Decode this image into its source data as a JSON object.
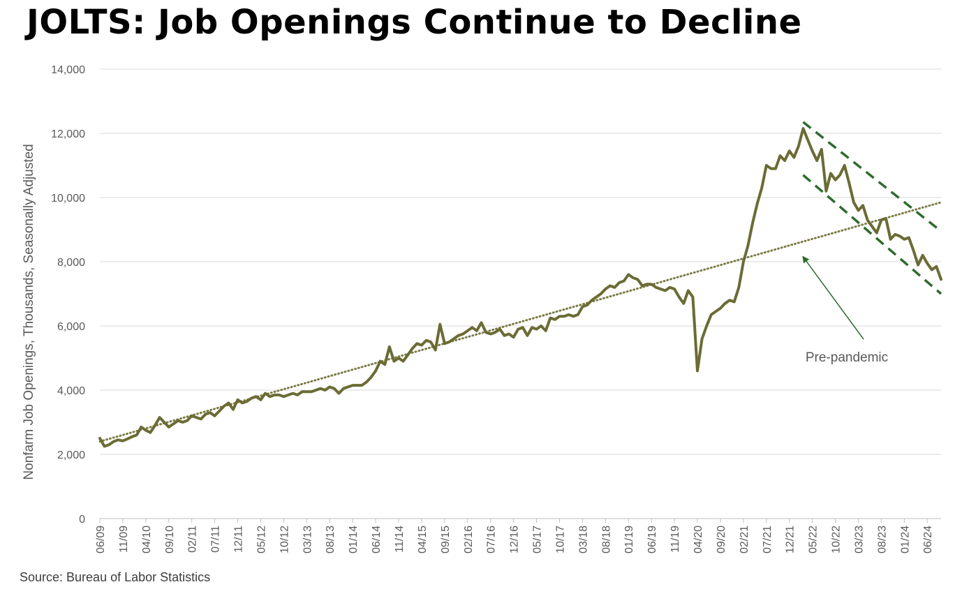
{
  "title": "JOLTS: Job Openings Continue to Decline",
  "source": "Source: Bureau of Labor Statistics",
  "colors": {
    "series": "#6b6b35",
    "trend": "#7a7a45",
    "channel": "#2f6b2f",
    "arrow": "#2f6b2f",
    "grid": "#d9d9d9",
    "tick_text": "#595959"
  },
  "chart_data": {
    "type": "line",
    "title": "JOLTS: Job Openings Continue to Decline",
    "ylabel": "Nonfarm Job Openings, Thousands, Seasonally Adjusted",
    "xlabel": "",
    "ylim": [
      0,
      14000
    ],
    "yticks": [
      0,
      2000,
      4000,
      6000,
      8000,
      10000,
      12000,
      14000
    ],
    "ytick_labels": [
      "0",
      "2,000",
      "4,000",
      "6,000",
      "8,000",
      "10,000",
      "12,000",
      "14,000"
    ],
    "x_start": "06/09",
    "x_end": "09/24",
    "xtick_labels": [
      "06/09",
      "11/09",
      "04/10",
      "09/10",
      "02/11",
      "07/11",
      "12/11",
      "05/12",
      "10/12",
      "03/13",
      "08/13",
      "01/14",
      "06/14",
      "11/14",
      "04/15",
      "09/15",
      "02/16",
      "07/16",
      "12/16",
      "05/17",
      "10/17",
      "03/18",
      "08/18",
      "01/19",
      "06/19",
      "11/19",
      "04/20",
      "09/20",
      "02/21",
      "07/21",
      "12/21",
      "05/22",
      "10/22",
      "03/23",
      "08/23",
      "01/24",
      "06/24"
    ],
    "grid": true,
    "legend": "none",
    "series": [
      {
        "name": "",
        "style": "solid",
        "points": [
          [
            "06/09",
            2500
          ],
          [
            "07/09",
            2250
          ],
          [
            "08/09",
            2300
          ],
          [
            "09/09",
            2400
          ],
          [
            "10/09",
            2450
          ],
          [
            "11/09",
            2420
          ],
          [
            "12/09",
            2480
          ],
          [
            "01/10",
            2550
          ],
          [
            "02/10",
            2600
          ],
          [
            "03/10",
            2850
          ],
          [
            "04/10",
            2750
          ],
          [
            "05/10",
            2680
          ],
          [
            "06/10",
            2900
          ],
          [
            "07/10",
            3150
          ],
          [
            "08/10",
            3000
          ],
          [
            "09/10",
            2850
          ],
          [
            "10/10",
            2950
          ],
          [
            "11/10",
            3050
          ],
          [
            "12/10",
            3000
          ],
          [
            "01/11",
            3050
          ],
          [
            "02/11",
            3200
          ],
          [
            "03/11",
            3150
          ],
          [
            "04/11",
            3100
          ],
          [
            "05/11",
            3250
          ],
          [
            "06/11",
            3300
          ],
          [
            "07/11",
            3200
          ],
          [
            "08/11",
            3350
          ],
          [
            "09/11",
            3500
          ],
          [
            "10/11",
            3600
          ],
          [
            "11/11",
            3400
          ],
          [
            "12/11",
            3700
          ],
          [
            "01/12",
            3600
          ],
          [
            "02/12",
            3650
          ],
          [
            "03/12",
            3750
          ],
          [
            "04/12",
            3800
          ],
          [
            "05/12",
            3700
          ],
          [
            "06/12",
            3900
          ],
          [
            "07/12",
            3800
          ],
          [
            "08/12",
            3850
          ],
          [
            "09/12",
            3850
          ],
          [
            "10/12",
            3800
          ],
          [
            "11/12",
            3850
          ],
          [
            "12/12",
            3900
          ],
          [
            "01/13",
            3850
          ],
          [
            "02/13",
            3950
          ],
          [
            "03/13",
            3950
          ],
          [
            "04/13",
            3950
          ],
          [
            "05/13",
            4000
          ],
          [
            "06/13",
            4050
          ],
          [
            "07/13",
            4000
          ],
          [
            "08/13",
            4100
          ],
          [
            "09/13",
            4050
          ],
          [
            "10/13",
            3900
          ],
          [
            "11/13",
            4050
          ],
          [
            "12/13",
            4100
          ],
          [
            "01/14",
            4150
          ],
          [
            "02/14",
            4150
          ],
          [
            "03/14",
            4150
          ],
          [
            "04/14",
            4250
          ],
          [
            "05/14",
            4400
          ],
          [
            "06/14",
            4600
          ],
          [
            "07/14",
            4900
          ],
          [
            "08/14",
            4800
          ],
          [
            "09/14",
            5350
          ],
          [
            "10/14",
            4900
          ],
          [
            "11/14",
            5000
          ],
          [
            "12/14",
            4900
          ],
          [
            "01/15",
            5100
          ],
          [
            "02/15",
            5300
          ],
          [
            "03/15",
            5450
          ],
          [
            "04/15",
            5400
          ],
          [
            "05/15",
            5550
          ],
          [
            "06/15",
            5500
          ],
          [
            "07/15",
            5250
          ],
          [
            "08/15",
            6050
          ],
          [
            "09/15",
            5450
          ],
          [
            "10/15",
            5500
          ],
          [
            "11/15",
            5600
          ],
          [
            "12/15",
            5700
          ],
          [
            "01/16",
            5750
          ],
          [
            "02/16",
            5850
          ],
          [
            "03/16",
            5950
          ],
          [
            "04/16",
            5850
          ],
          [
            "05/16",
            6100
          ],
          [
            "06/16",
            5800
          ],
          [
            "07/16",
            5750
          ],
          [
            "08/16",
            5800
          ],
          [
            "09/16",
            5900
          ],
          [
            "10/16",
            5700
          ],
          [
            "11/16",
            5750
          ],
          [
            "12/16",
            5650
          ],
          [
            "01/17",
            5900
          ],
          [
            "02/17",
            5950
          ],
          [
            "03/17",
            5700
          ],
          [
            "04/17",
            5950
          ],
          [
            "05/17",
            5900
          ],
          [
            "06/17",
            6000
          ],
          [
            "07/17",
            5850
          ],
          [
            "08/17",
            6250
          ],
          [
            "09/17",
            6200
          ],
          [
            "10/17",
            6300
          ],
          [
            "11/17",
            6300
          ],
          [
            "12/17",
            6350
          ],
          [
            "01/18",
            6300
          ],
          [
            "02/18",
            6350
          ],
          [
            "03/18",
            6600
          ],
          [
            "04/18",
            6650
          ],
          [
            "05/18",
            6800
          ],
          [
            "06/18",
            6900
          ],
          [
            "07/18",
            7000
          ],
          [
            "08/18",
            7150
          ],
          [
            "09/18",
            7250
          ],
          [
            "10/18",
            7200
          ],
          [
            "11/18",
            7350
          ],
          [
            "12/18",
            7400
          ],
          [
            "01/19",
            7600
          ],
          [
            "02/19",
            7500
          ],
          [
            "03/19",
            7450
          ],
          [
            "04/19",
            7250
          ],
          [
            "05/19",
            7300
          ],
          [
            "06/19",
            7300
          ],
          [
            "07/19",
            7200
          ],
          [
            "08/19",
            7150
          ],
          [
            "09/19",
            7100
          ],
          [
            "10/19",
            7200
          ],
          [
            "11/19",
            7150
          ],
          [
            "12/19",
            6900
          ],
          [
            "01/20",
            6700
          ],
          [
            "02/20",
            7100
          ],
          [
            "03/20",
            6900
          ],
          [
            "04/20",
            4600
          ],
          [
            "05/20",
            5600
          ],
          [
            "06/20",
            6000
          ],
          [
            "07/20",
            6350
          ],
          [
            "08/20",
            6450
          ],
          [
            "09/20",
            6550
          ],
          [
            "10/20",
            6700
          ],
          [
            "11/20",
            6800
          ],
          [
            "12/20",
            6750
          ],
          [
            "01/21",
            7200
          ],
          [
            "02/21",
            8000
          ],
          [
            "03/21",
            8500
          ],
          [
            "04/21",
            9200
          ],
          [
            "05/21",
            9800
          ],
          [
            "06/21",
            10300
          ],
          [
            "07/21",
            11000
          ],
          [
            "08/21",
            10900
          ],
          [
            "09/21",
            10900
          ],
          [
            "10/21",
            11300
          ],
          [
            "11/21",
            11150
          ],
          [
            "12/21",
            11450
          ],
          [
            "01/22",
            11250
          ],
          [
            "02/22",
            11600
          ],
          [
            "03/22",
            12150
          ],
          [
            "04/22",
            11800
          ],
          [
            "05/22",
            11450
          ],
          [
            "06/22",
            11150
          ],
          [
            "07/22",
            11500
          ],
          [
            "08/22",
            10200
          ],
          [
            "09/22",
            10750
          ],
          [
            "10/22",
            10550
          ],
          [
            "11/22",
            10700
          ],
          [
            "12/22",
            11000
          ],
          [
            "01/23",
            10450
          ],
          [
            "02/23",
            9850
          ],
          [
            "03/23",
            9600
          ],
          [
            "04/23",
            9750
          ],
          [
            "05/23",
            9300
          ],
          [
            "06/23",
            9100
          ],
          [
            "07/23",
            8900
          ],
          [
            "08/23",
            9300
          ],
          [
            "09/23",
            9350
          ],
          [
            "10/23",
            8700
          ],
          [
            "11/23",
            8850
          ],
          [
            "12/23",
            8800
          ],
          [
            "01/24",
            8700
          ],
          [
            "02/24",
            8750
          ],
          [
            "03/24",
            8350
          ],
          [
            "04/24",
            7900
          ],
          [
            "05/24",
            8200
          ],
          [
            "06/24",
            7950
          ],
          [
            "07/24",
            7750
          ],
          [
            "08/24",
            7850
          ],
          [
            "09/24",
            7450
          ]
        ]
      }
    ],
    "trendlines": [
      {
        "style": "dotted",
        "from": [
          "06/09",
          2400
        ],
        "to": [
          "09/24",
          9850
        ]
      },
      {
        "style": "dashed",
        "from": [
          "03/22",
          12350
        ],
        "to": [
          "09/24",
          8950
        ]
      },
      {
        "style": "dashed",
        "from": [
          "03/22",
          10700
        ],
        "to": [
          "09/24",
          7000
        ]
      }
    ],
    "annotations": [
      {
        "text": "Pre-pandemic",
        "arrow": true,
        "arrow_to": [
          "03/22",
          8150
        ]
      }
    ]
  }
}
